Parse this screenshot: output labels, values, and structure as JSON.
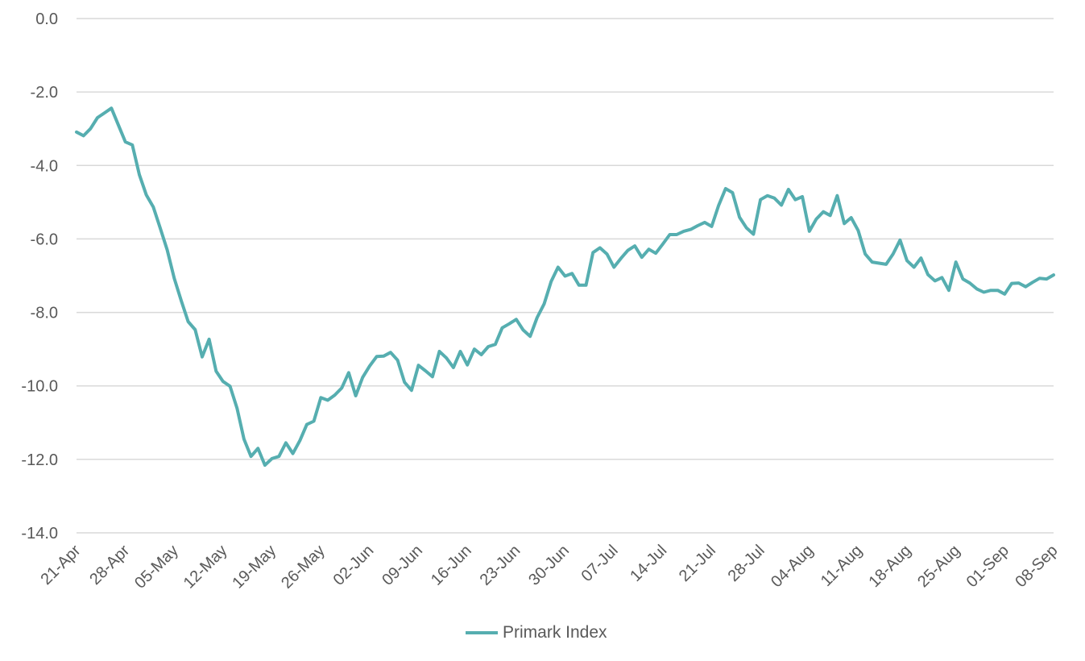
{
  "chart_data": {
    "type": "line",
    "title": "",
    "xlabel": "",
    "ylabel": "",
    "ylim": [
      -14,
      0
    ],
    "y_ticks": [
      "0.0",
      "-2.0",
      "-4.0",
      "-6.0",
      "-8.0",
      "-10.0",
      "-12.0",
      "-14.0"
    ],
    "y_tick_values": [
      0,
      -2,
      -4,
      -6,
      -8,
      -10,
      -12,
      -14
    ],
    "x_ticks": [
      "21-Apr",
      "28-Apr",
      "05-May",
      "12-May",
      "19-May",
      "26-May",
      "02-Jun",
      "09-Jun",
      "16-Jun",
      "23-Jun",
      "30-Jun",
      "07-Jul",
      "14-Jul",
      "21-Jul",
      "28-Jul",
      "04-Aug",
      "11-Aug",
      "18-Aug",
      "25-Aug",
      "01-Sep",
      "08-Sep"
    ],
    "grid": "horizontal",
    "legend": "bottom",
    "series": [
      {
        "name": "Primark Index",
        "color": "#56aeb0",
        "x": [
          "21-Apr",
          "22-Apr",
          "23-Apr",
          "24-Apr",
          "25-Apr",
          "26-Apr",
          "27-Apr",
          "28-Apr",
          "29-Apr",
          "30-Apr",
          "01-May",
          "02-May",
          "03-May",
          "04-May",
          "05-May",
          "06-May",
          "07-May",
          "08-May",
          "09-May",
          "10-May",
          "11-May",
          "12-May",
          "13-May",
          "14-May",
          "15-May",
          "16-May",
          "17-May",
          "18-May",
          "19-May",
          "20-May",
          "21-May",
          "22-May",
          "23-May",
          "24-May",
          "25-May",
          "26-May",
          "27-May",
          "28-May",
          "29-May",
          "30-May",
          "31-May",
          "01-Jun",
          "02-Jun",
          "03-Jun",
          "04-Jun",
          "05-Jun",
          "06-Jun",
          "07-Jun",
          "08-Jun",
          "09-Jun",
          "10-Jun",
          "11-Jun",
          "12-Jun",
          "13-Jun",
          "14-Jun",
          "15-Jun",
          "16-Jun",
          "17-Jun",
          "18-Jun",
          "19-Jun",
          "20-Jun",
          "21-Jun",
          "22-Jun",
          "23-Jun",
          "24-Jun",
          "25-Jun",
          "26-Jun",
          "27-Jun",
          "28-Jun",
          "29-Jun",
          "30-Jun",
          "01-Jul",
          "02-Jul",
          "03-Jul",
          "04-Jul",
          "05-Jul",
          "06-Jul",
          "07-Jul",
          "08-Jul",
          "09-Jul",
          "10-Jul",
          "11-Jul",
          "12-Jul",
          "13-Jul",
          "14-Jul",
          "15-Jul",
          "16-Jul",
          "17-Jul",
          "18-Jul",
          "19-Jul",
          "20-Jul",
          "21-Jul",
          "22-Jul",
          "23-Jul",
          "24-Jul",
          "25-Jul",
          "26-Jul",
          "27-Jul",
          "28-Jul",
          "29-Jul",
          "30-Jul",
          "31-Jul",
          "01-Aug",
          "02-Aug",
          "03-Aug",
          "04-Aug",
          "05-Aug",
          "06-Aug",
          "07-Aug",
          "08-Aug",
          "09-Aug",
          "10-Aug",
          "11-Aug",
          "12-Aug",
          "13-Aug",
          "14-Aug",
          "15-Aug",
          "16-Aug",
          "17-Aug",
          "18-Aug",
          "19-Aug",
          "20-Aug",
          "21-Aug",
          "22-Aug",
          "23-Aug",
          "24-Aug",
          "25-Aug",
          "26-Aug",
          "27-Aug",
          "28-Aug",
          "29-Aug",
          "30-Aug",
          "31-Aug",
          "01-Sep",
          "02-Sep",
          "03-Sep",
          "04-Sep",
          "05-Sep",
          "06-Sep",
          "07-Sep",
          "08-Sep"
        ],
        "values": [
          -3.09,
          -3.19,
          -3.0,
          -2.7,
          -2.57,
          -2.44,
          -2.9,
          -3.36,
          -3.44,
          -4.25,
          -4.8,
          -5.13,
          -5.71,
          -6.3,
          -7.07,
          -7.68,
          -8.25,
          -8.47,
          -9.21,
          -8.73,
          -9.6,
          -9.88,
          -10.01,
          -10.61,
          -11.45,
          -11.92,
          -11.7,
          -12.16,
          -11.98,
          -11.92,
          -11.55,
          -11.84,
          -11.49,
          -11.05,
          -10.96,
          -10.32,
          -10.39,
          -10.25,
          -10.06,
          -9.64,
          -10.27,
          -9.77,
          -9.46,
          -9.2,
          -9.19,
          -9.09,
          -9.3,
          -9.9,
          -10.12,
          -9.44,
          -9.59,
          -9.75,
          -9.06,
          -9.24,
          -9.5,
          -9.06,
          -9.43,
          -9.0,
          -9.15,
          -8.93,
          -8.87,
          -8.42,
          -8.31,
          -8.19,
          -8.48,
          -8.65,
          -8.14,
          -7.77,
          -7.16,
          -6.77,
          -7.01,
          -6.94,
          -7.26,
          -7.26,
          -6.37,
          -6.24,
          -6.41,
          -6.77,
          -6.53,
          -6.31,
          -6.19,
          -6.5,
          -6.28,
          -6.39,
          -6.14,
          -5.88,
          -5.88,
          -5.79,
          -5.74,
          -5.64,
          -5.55,
          -5.66,
          -5.09,
          -4.63,
          -4.74,
          -5.41,
          -5.7,
          -5.87,
          -4.93,
          -4.82,
          -4.89,
          -5.08,
          -4.65,
          -4.93,
          -4.85,
          -5.79,
          -5.46,
          -5.26,
          -5.36,
          -4.82,
          -5.58,
          -5.42,
          -5.77,
          -6.41,
          -6.63,
          -6.66,
          -6.69,
          -6.41,
          -6.03,
          -6.59,
          -6.77,
          -6.52,
          -6.97,
          -7.14,
          -7.05,
          -7.4,
          -6.63,
          -7.09,
          -7.2,
          -7.36,
          -7.45,
          -7.4,
          -7.4,
          -7.5,
          -7.21,
          -7.2,
          -7.3,
          -7.18,
          -7.07,
          -7.09,
          -6.98
        ]
      }
    ]
  },
  "legend": {
    "label": "Primark Index"
  },
  "colors": {
    "line": "#56aeb0",
    "grid": "#d9d9d9",
    "text": "#595959"
  }
}
